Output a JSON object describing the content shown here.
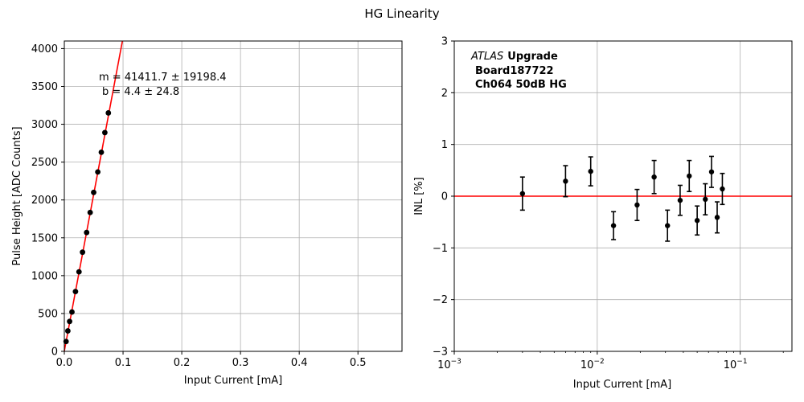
{
  "figure": {
    "title": "HG Linearity"
  },
  "chart_data": [
    {
      "type": "scatter",
      "xlabel": "Input Current [mA]",
      "ylabel": "Pulse Height [ADC Counts]",
      "xlim": [
        0,
        0.575
      ],
      "ylim": [
        0,
        4100
      ],
      "xticks": [
        "0.0",
        "0.1",
        "0.2",
        "0.3",
        "0.4",
        "0.5"
      ],
      "yticks": [
        "0",
        "500",
        "1000",
        "1500",
        "2000",
        "2500",
        "3000",
        "3500",
        "4000"
      ],
      "grid": true,
      "annotation_lines": [
        "m = 41411.7 ± 19198.4",
        "b = 4.4 ± 24.8"
      ],
      "points": {
        "x": [
          0.003,
          0.006,
          0.009,
          0.013,
          0.019,
          0.025,
          0.031,
          0.038,
          0.044,
          0.05,
          0.057,
          0.063,
          0.069,
          0.075
        ],
        "y": [
          130,
          270,
          395,
          520,
          790,
          1050,
          1310,
          1570,
          1835,
          2100,
          2370,
          2630,
          2890,
          3150
        ]
      },
      "fit_line": {
        "slope": 41411.7,
        "intercept": 4.4,
        "color": "#ff0000"
      },
      "marker_color": "#000000"
    },
    {
      "type": "scatter",
      "xlabel": "Input Current [mA]",
      "ylabel": "INL [%]",
      "xscale": "log",
      "xlim": [
        0.001,
        0.23
      ],
      "ylim": [
        -3,
        3
      ],
      "xticks": [
        0.001,
        0.01,
        0.1
      ],
      "xtick_labels": [
        {
          "base": "10",
          "exp": "−3"
        },
        {
          "base": "10",
          "exp": "−2"
        },
        {
          "base": "10",
          "exp": "−1"
        }
      ],
      "yticks": [
        "−3",
        "−2",
        "−1",
        "0",
        "1",
        "2",
        "3"
      ],
      "grid": true,
      "legend_text": {
        "atlas": "ATLAS",
        "upgrade": "Upgrade",
        "board": "Board187722",
        "channel": "Ch064 50dB HG"
      },
      "reference_line": {
        "y": 0,
        "color": "#ff0000"
      },
      "points": {
        "x": [
          0.003,
          0.006,
          0.009,
          0.013,
          0.019,
          0.025,
          0.031,
          0.038,
          0.044,
          0.05,
          0.057,
          0.063,
          0.069,
          0.075
        ],
        "y": [
          0.05,
          0.29,
          0.48,
          -0.57,
          -0.17,
          0.37,
          -0.57,
          -0.08,
          0.39,
          -0.47,
          -0.06,
          0.47,
          -0.41,
          0.14
        ],
        "err": [
          0.32,
          0.3,
          0.28,
          0.27,
          0.3,
          0.32,
          0.3,
          0.29,
          0.3,
          0.28,
          0.3,
          0.3,
          0.3,
          0.3
        ]
      },
      "marker_color": "#000000"
    }
  ]
}
